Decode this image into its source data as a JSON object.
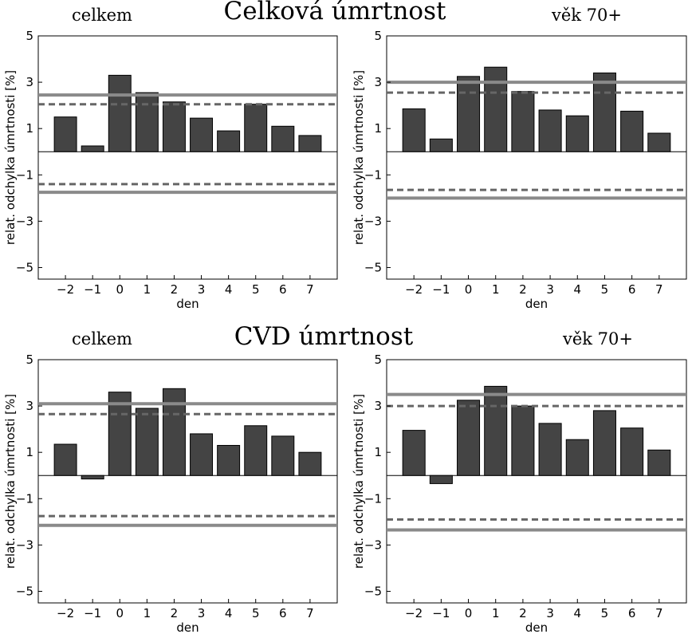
{
  "figure": {
    "group_titles": [
      "Celková úmrtnost",
      "CVD úmrtnost"
    ]
  },
  "chart_data": [
    {
      "type": "bar",
      "subtitle": "celkem",
      "xlabel": "den",
      "ylabel": "relat. odchylka úmrtnosti [%]",
      "categories": [
        "−2",
        "−1",
        "0",
        "1",
        "2",
        "3",
        "4",
        "5",
        "6",
        "7"
      ],
      "values": [
        1.5,
        0.25,
        3.3,
        2.55,
        2.15,
        1.45,
        0.9,
        2.05,
        1.1,
        0.7
      ],
      "xlim": [
        -3,
        8
      ],
      "ylim": [
        -5.5,
        5
      ],
      "yticks": [
        5,
        3,
        1,
        -1,
        -3,
        -5
      ],
      "ytick_labels": [
        "5",
        "3",
        "1",
        "−1",
        "−3",
        "−5"
      ],
      "upper_solid": 2.45,
      "upper_dashed": 2.05,
      "lower_dashed": -1.4,
      "lower_solid": -1.75
    },
    {
      "type": "bar",
      "subtitle": "věk 70+",
      "xlabel": "den",
      "ylabel": "relat. odchylka úmrtnosti [%]",
      "categories": [
        "−2",
        "−1",
        "0",
        "1",
        "2",
        "3",
        "4",
        "5",
        "6",
        "7"
      ],
      "values": [
        1.85,
        0.55,
        3.25,
        3.65,
        2.6,
        1.8,
        1.55,
        3.4,
        1.75,
        0.8
      ],
      "xlim": [
        -3,
        8
      ],
      "ylim": [
        -5.5,
        5
      ],
      "yticks": [
        5,
        3,
        1,
        -1,
        -3,
        -5
      ],
      "ytick_labels": [
        "5",
        "3",
        "1",
        "−1",
        "−3",
        "−5"
      ],
      "upper_solid": 3.0,
      "upper_dashed": 2.55,
      "lower_dashed": -1.65,
      "lower_solid": -2.0
    },
    {
      "type": "bar",
      "subtitle": "celkem",
      "xlabel": "den",
      "ylabel": "relat. odchylka úmrtnosti [%]",
      "categories": [
        "−2",
        "−1",
        "0",
        "1",
        "2",
        "3",
        "4",
        "5",
        "6",
        "7"
      ],
      "values": [
        1.35,
        -0.15,
        3.6,
        2.9,
        3.75,
        1.8,
        1.3,
        2.15,
        1.7,
        1.0
      ],
      "xlim": [
        -3,
        8
      ],
      "ylim": [
        -5.5,
        5
      ],
      "yticks": [
        5,
        3,
        1,
        -1,
        -3,
        -5
      ],
      "ytick_labels": [
        "5",
        "3",
        "1",
        "−1",
        "−3",
        "−5"
      ],
      "upper_solid": 3.1,
      "upper_dashed": 2.65,
      "lower_dashed": -1.75,
      "lower_solid": -2.15
    },
    {
      "type": "bar",
      "subtitle": "věk 70+",
      "xlabel": "den",
      "ylabel": "relat. odchylka úmrtnosti [%]",
      "categories": [
        "−2",
        "−1",
        "0",
        "1",
        "2",
        "3",
        "4",
        "5",
        "6",
        "7"
      ],
      "values": [
        1.95,
        -0.35,
        3.25,
        3.85,
        3.0,
        2.25,
        1.55,
        2.8,
        2.05,
        1.1
      ],
      "xlim": [
        -3,
        8
      ],
      "ylim": [
        -5.5,
        5
      ],
      "yticks": [
        5,
        3,
        1,
        -1,
        -3,
        -5
      ],
      "ytick_labels": [
        "5",
        "3",
        "1",
        "−1",
        "−3",
        "−5"
      ],
      "upper_solid": 3.5,
      "upper_dashed": 3.0,
      "lower_dashed": -1.9,
      "lower_solid": -2.35
    }
  ]
}
